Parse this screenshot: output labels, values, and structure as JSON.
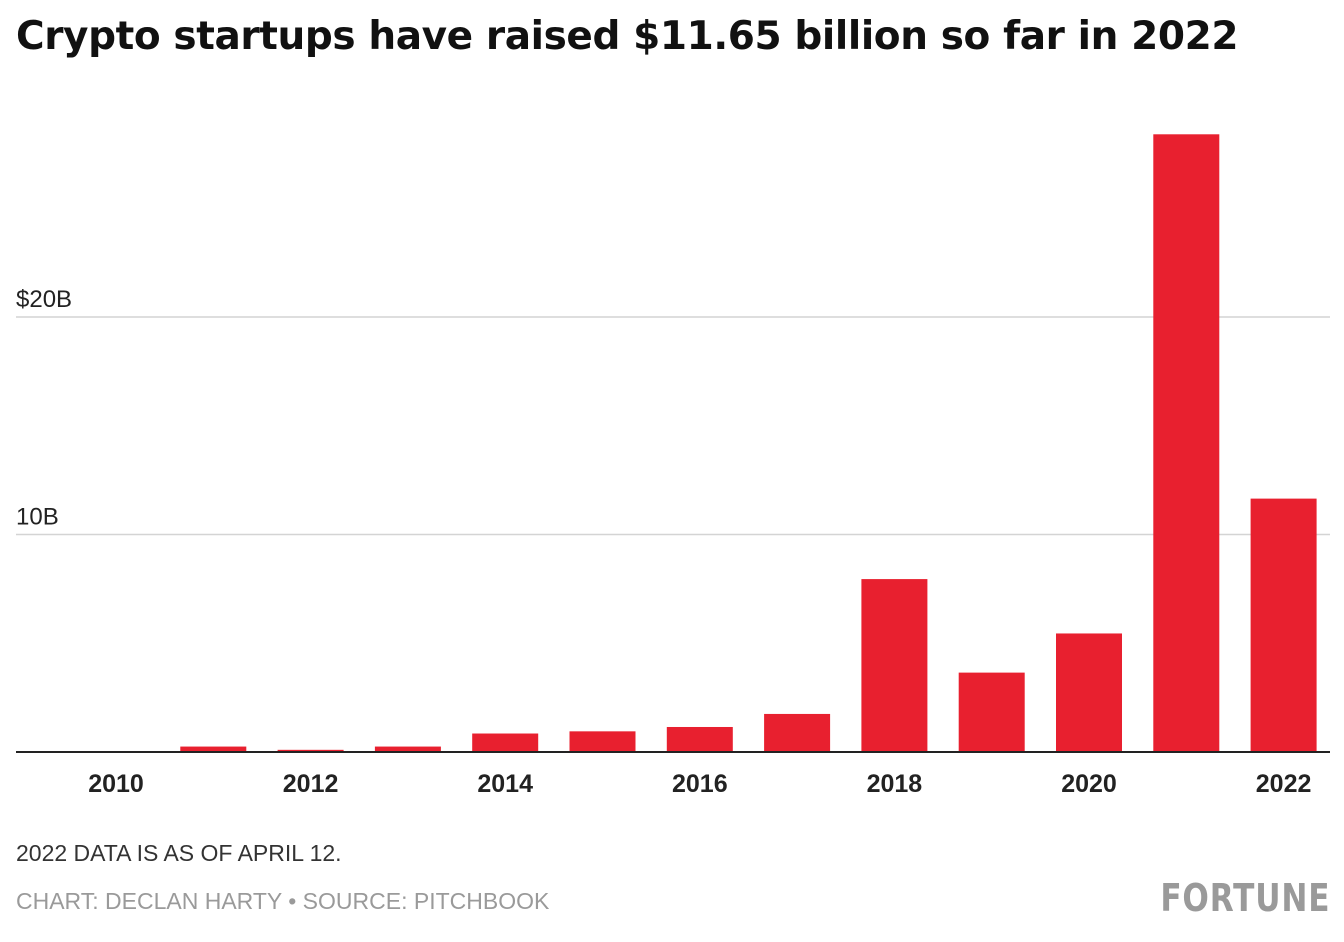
{
  "chart_data": {
    "type": "bar",
    "title": "Crypto startups have raised $11.65 billion so far in 2022",
    "categories": [
      "2010",
      "2011",
      "2012",
      "2013",
      "2014",
      "2015",
      "2016",
      "2017",
      "2018",
      "2019",
      "2020",
      "2021",
      "2022"
    ],
    "x_tick_labels": [
      "2010",
      "",
      "2012",
      "",
      "2014",
      "",
      "2016",
      "",
      "2018",
      "",
      "2020",
      "",
      "2022"
    ],
    "values": [
      0.0,
      0.25,
      0.1,
      0.25,
      0.85,
      0.95,
      1.15,
      1.75,
      7.95,
      3.65,
      5.45,
      28.4,
      11.65
    ],
    "unit": "billion USD",
    "ylim": [
      0,
      30
    ],
    "y_ticks": [
      {
        "value": 10,
        "label": "10B"
      },
      {
        "value": 20,
        "label": "$20B"
      }
    ],
    "xlabel": "",
    "ylabel": "",
    "grid": true,
    "bar_color": "#e8202f",
    "gridline_color": "#d4d4d4",
    "axis_color": "#222222"
  },
  "footnote": "2022 DATA IS AS OF APRIL 12.",
  "credit": "CHART: DECLAN HARTY • SOURCE: PITCHBOOK",
  "brand": "FORTUNE"
}
